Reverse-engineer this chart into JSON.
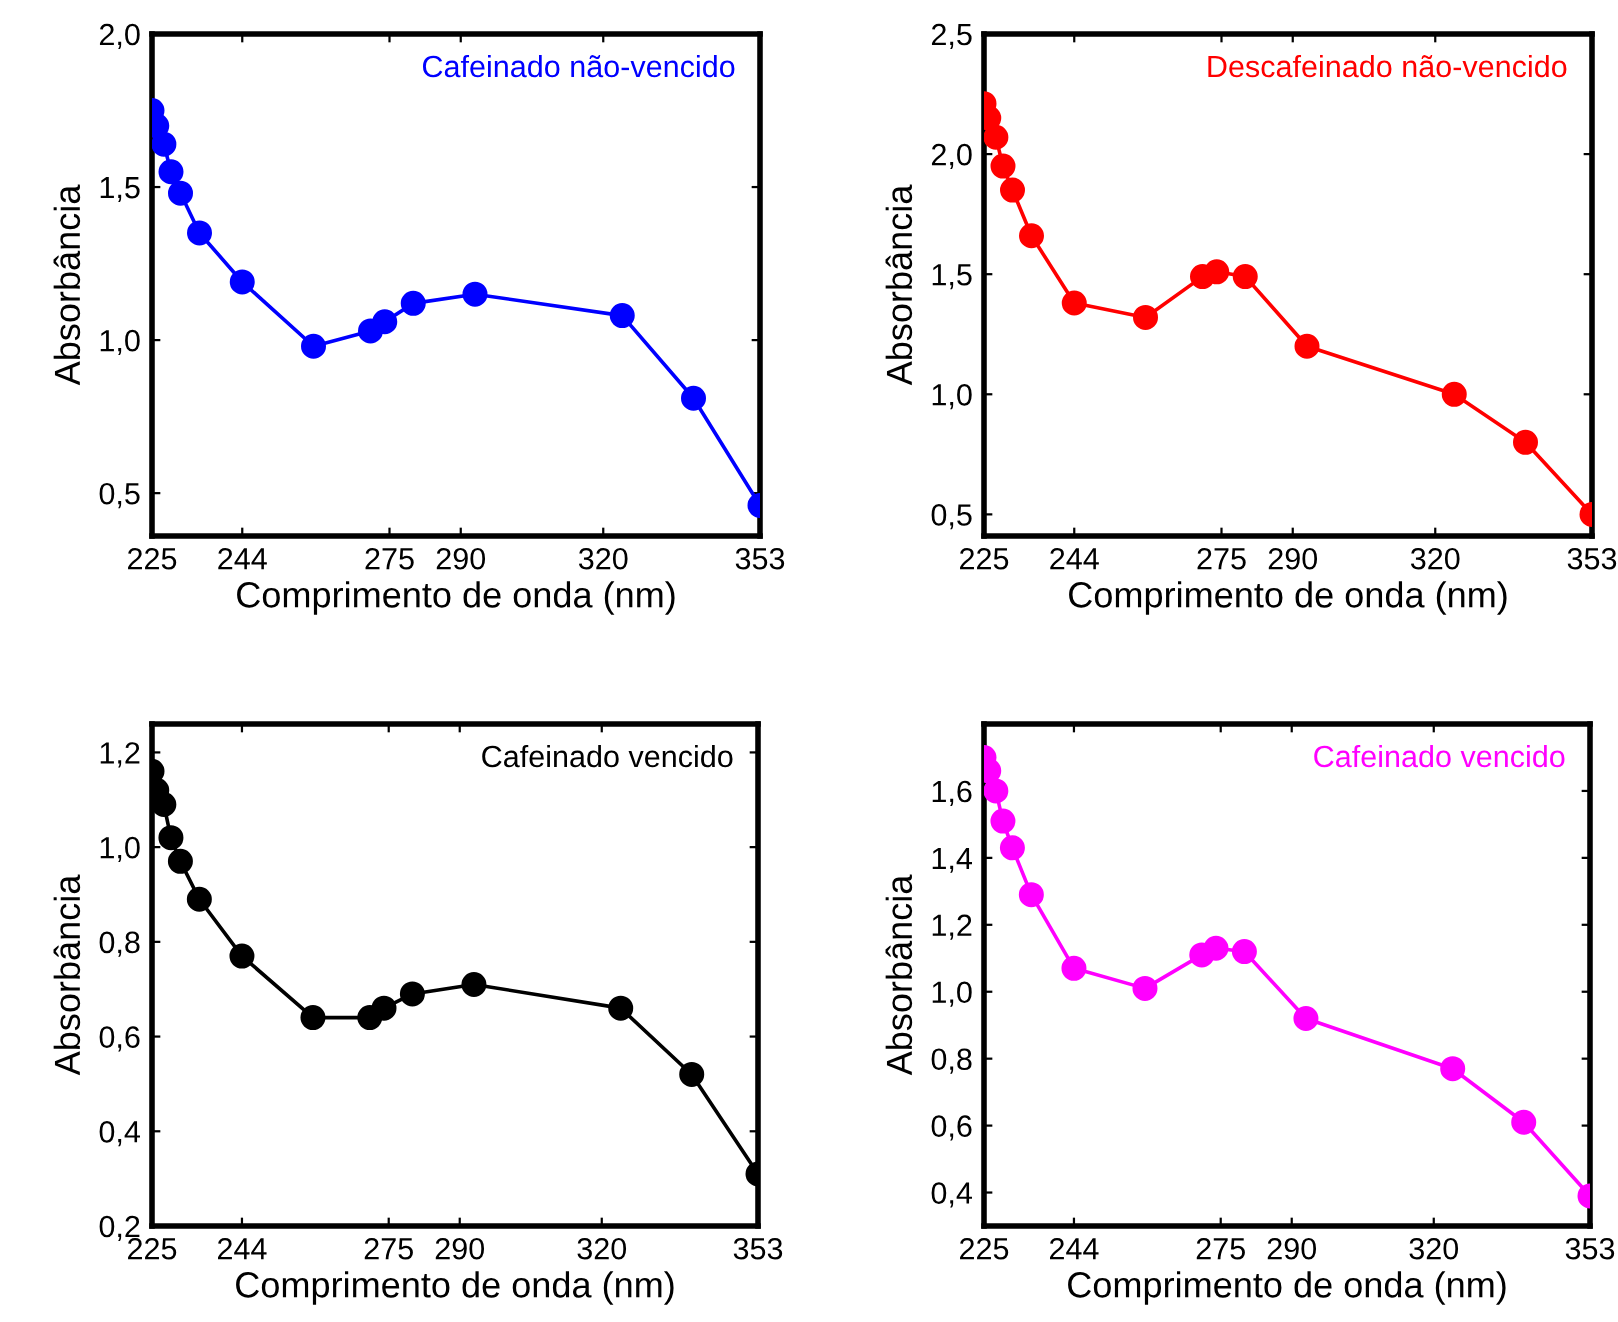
{
  "chart_data": [
    {
      "type": "line",
      "xlabel": "Comprimento de onda (nm)",
      "ylabel": "Absorbância",
      "marker": "circle",
      "line_style": "solid",
      "grid": false,
      "x": [
        225,
        226,
        227.5,
        229,
        231,
        235,
        244,
        259,
        271,
        274,
        280,
        293,
        324,
        339,
        353
      ],
      "series": [
        {
          "name": "Cafeinado não-vencido",
          "color": "#0000ff",
          "values": [
            1.75,
            1.7,
            1.64,
            1.55,
            1.48,
            1.35,
            1.19,
            0.98,
            1.03,
            1.06,
            1.12,
            1.15,
            1.08,
            0.81,
            0.46
          ]
        }
      ],
      "xlim": [
        225,
        353
      ],
      "ylim": [
        0.36,
        2.0
      ],
      "xticks": [
        225,
        244,
        275,
        290,
        320,
        353
      ],
      "yticks": [
        {
          "value": 0.5,
          "label": "0,5"
        },
        {
          "value": 1.0,
          "label": "1,0"
        },
        {
          "value": 1.5,
          "label": "1,5"
        },
        {
          "value": 2.0,
          "label": "2,0"
        }
      ]
    },
    {
      "type": "line",
      "xlabel": "Comprimento de onda (nm)",
      "ylabel": "Absorbância",
      "marker": "circle",
      "line_style": "solid",
      "grid": false,
      "x": [
        225,
        226,
        227.5,
        229,
        231,
        235,
        244,
        259,
        271,
        274,
        280,
        293,
        324,
        339,
        353
      ],
      "series": [
        {
          "name": "Descafeinado não-vencido",
          "color": "#ff0000",
          "values": [
            2.21,
            2.15,
            2.07,
            1.95,
            1.85,
            1.66,
            1.38,
            1.32,
            1.49,
            1.51,
            1.49,
            1.2,
            1.0,
            0.8,
            0.5
          ]
        }
      ],
      "xlim": [
        225,
        353
      ],
      "ylim": [
        0.41,
        2.5
      ],
      "xticks": [
        225,
        244,
        275,
        290,
        320,
        353
      ],
      "yticks": [
        {
          "value": 0.5,
          "label": "0,5"
        },
        {
          "value": 1.0,
          "label": "1,0"
        },
        {
          "value": 1.5,
          "label": "1,5"
        },
        {
          "value": 2.0,
          "label": "2,0"
        },
        {
          "value": 2.5,
          "label": "2,5"
        }
      ]
    },
    {
      "type": "line",
      "xlabel": "Comprimento de onda (nm)",
      "ylabel": "Absorbância",
      "marker": "circle",
      "line_style": "solid",
      "grid": false,
      "x": [
        225,
        226,
        227.5,
        229,
        231,
        235,
        244,
        259,
        271,
        274,
        280,
        293,
        324,
        339,
        353
      ],
      "series": [
        {
          "name": "Cafeinado vencido",
          "color": "#000000",
          "values": [
            1.16,
            1.12,
            1.09,
            1.02,
            0.97,
            0.89,
            0.77,
            0.64,
            0.64,
            0.66,
            0.69,
            0.71,
            0.66,
            0.52,
            0.31
          ]
        }
      ],
      "xlim": [
        225,
        353
      ],
      "ylim": [
        0.2,
        1.26
      ],
      "xticks": [
        225,
        244,
        275,
        290,
        320,
        353
      ],
      "yticks": [
        {
          "value": 0.2,
          "label": "0,2"
        },
        {
          "value": 0.4,
          "label": "0,4"
        },
        {
          "value": 0.6,
          "label": "0,6"
        },
        {
          "value": 0.8,
          "label": "0,8"
        },
        {
          "value": 1.0,
          "label": "1,0"
        },
        {
          "value": 1.2,
          "label": "1,2"
        }
      ]
    },
    {
      "type": "line",
      "xlabel": "Comprimento de onda (nm)",
      "ylabel": "Absorbância",
      "marker": "circle",
      "line_style": "solid",
      "grid": false,
      "x": [
        225,
        226,
        227.5,
        229,
        231,
        235,
        244,
        259,
        271,
        274,
        280,
        293,
        324,
        339,
        353
      ],
      "series": [
        {
          "name": "Cafeinado vencido",
          "color": "#ff00ff",
          "values": [
            1.7,
            1.66,
            1.6,
            1.51,
            1.43,
            1.29,
            1.07,
            1.01,
            1.11,
            1.13,
            1.12,
            0.92,
            0.77,
            0.61,
            0.39
          ]
        }
      ],
      "xlim": [
        225,
        353
      ],
      "ylim": [
        0.3,
        1.8
      ],
      "xticks": [
        225,
        244,
        275,
        290,
        320,
        353
      ],
      "yticks": [
        {
          "value": 0.4,
          "label": "0,4"
        },
        {
          "value": 0.6,
          "label": "0,6"
        },
        {
          "value": 0.8,
          "label": "0,8"
        },
        {
          "value": 1.0,
          "label": "1,0"
        },
        {
          "value": 1.2,
          "label": "1,2"
        },
        {
          "value": 1.4,
          "label": "1,4"
        },
        {
          "value": 1.6,
          "label": "1,6"
        }
      ]
    }
  ]
}
